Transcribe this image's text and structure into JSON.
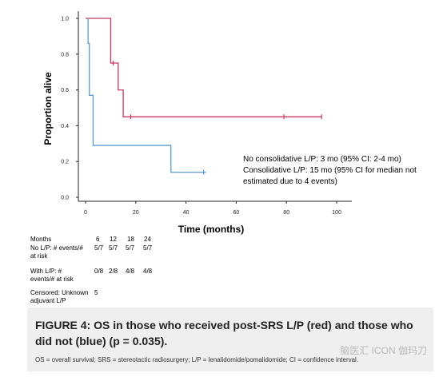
{
  "chart_data": {
    "type": "line",
    "step": true,
    "ylabel": "Proportion alive",
    "xlabel": "Time (months)",
    "xlim": [
      0,
      100
    ],
    "ylim": [
      0.0,
      1.0
    ],
    "x_ticks": [
      0,
      20,
      40,
      60,
      80,
      100
    ],
    "y_ticks": [
      0.0,
      0.2,
      0.4,
      0.6,
      0.8,
      1.0
    ],
    "x_tick_labels": [
      "0",
      "20",
      "40",
      "60",
      "80",
      "100"
    ],
    "y_tick_labels": [
      "0.0",
      "0.2",
      "0.4",
      "0.6",
      "0.8",
      "1.0"
    ],
    "grid": false,
    "series": [
      {
        "color": "#c8385e",
        "x": [
          0,
          10,
          10,
          13,
          13,
          15,
          15,
          94
        ],
        "y": [
          1.0,
          1.0,
          0.75,
          0.75,
          0.6,
          0.6,
          0.45,
          0.45
        ],
        "censor_x": [
          11,
          18,
          79,
          94
        ],
        "censor_y": [
          0.75,
          0.45,
          0.45,
          0.45
        ]
      },
      {
        "color": "#5b9bd5",
        "x": [
          1,
          1,
          1.5,
          1.5,
          3,
          3,
          34,
          34,
          48
        ],
        "y": [
          1.0,
          0.86,
          0.86,
          0.57,
          0.57,
          0.29,
          0.29,
          0.14,
          0.14
        ],
        "censor_x": [
          47
        ],
        "censor_y": [
          0.14
        ]
      }
    ],
    "annotations": [
      "No consolidative L/P: 3 mo (95% CI: 2-4 mo)",
      "Consolidative L/P: 15 mo (95% CI for median not",
      "estimated due to 4 events)"
    ]
  },
  "risk_table": {
    "months_label": "Months",
    "months": [
      "6",
      "12",
      "18",
      "24"
    ],
    "no_lp_label": [
      "No L/P: # events/#",
      "at risk"
    ],
    "no_lp_values": [
      "5/7",
      "5/7",
      "5/7",
      "5/7"
    ],
    "with_lp_label": [
      "With L/P: #",
      "events/# at risk"
    ],
    "with_lp_values": [
      "0/8",
      "2/8",
      "4/8",
      "4/8"
    ],
    "censored_label": [
      "Censored: Unknown",
      "adjuvant L/P"
    ],
    "censored_value": "5"
  },
  "caption": {
    "title": "FIGURE 4: OS in those who received post-SRS L/P (red) and those who did not (blue) (p = 0.035).",
    "footnote": "OS = overall survival; SRS = stereotactic radiosurgery; L/P = lenalidomide/pomalidomide; CI = confidence interval.",
    "watermark": "脑医汇 ICON 伽玛刀"
  }
}
